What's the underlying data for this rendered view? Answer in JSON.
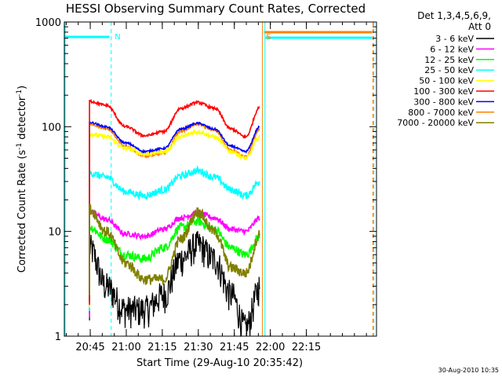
{
  "chart_data": {
    "type": "line",
    "title": "HESSI Observing Summary Count Rates, Corrected",
    "xlabel": "Start Time (29-Aug-10 20:35:42)",
    "ylabel_main": "Corrected Count Rate (s",
    "ylabel_sup1": "-1",
    "ylabel_mid": " detector",
    "ylabel_sup2": "-1",
    "ylabel_end": ")",
    "yscale": "log",
    "ylim": [
      1,
      1000
    ],
    "y_ticks": [
      {
        "value": 1,
        "label": "1"
      },
      {
        "value": 10,
        "label": "10"
      },
      {
        "value": 100,
        "label": "100"
      },
      {
        "value": 1000,
        "label": "1000"
      }
    ],
    "x_range_min": [
      -1.5,
      128.5
    ],
    "x_ticks": [
      {
        "value": 9.3,
        "label": "20:45"
      },
      {
        "value": 24.3,
        "label": "21:00"
      },
      {
        "value": 39.3,
        "label": "21:15"
      },
      {
        "value": 54.3,
        "label": "21:30"
      },
      {
        "value": 69.3,
        "label": "21:45"
      },
      {
        "value": 84.3,
        "label": "22:00"
      },
      {
        "value": 99.3,
        "label": "22:15"
      }
    ],
    "legend_header": [
      "Det 1,3,4,5,6,9,",
      "Att 0"
    ],
    "legend_placement": "right, outside plot",
    "series": [
      {
        "name": "3 - 6 keV",
        "color": "#000000",
        "values": [
          7.0,
          3.0,
          1.8,
          1.8,
          2.5,
          5.5,
          7.5,
          5.5,
          2.5,
          1.2,
          3.0
        ]
      },
      {
        "name": "6 - 12 keV",
        "color": "#ff00ff",
        "values": [
          15.5,
          13.0,
          9.5,
          9.0,
          10.5,
          13.5,
          15.0,
          13.5,
          10.5,
          10.0,
          13.5
        ]
      },
      {
        "name": "12 - 25 keV",
        "color": "#00ff00",
        "values": [
          11.0,
          8.5,
          6.0,
          5.5,
          7.0,
          11.0,
          12.5,
          10.5,
          7.0,
          6.0,
          9.0
        ]
      },
      {
        "name": "25 - 50 keV",
        "color": "#00ffff",
        "values": [
          36,
          33,
          24,
          22,
          25,
          34,
          38,
          33,
          25,
          22,
          30
        ]
      },
      {
        "name": "50 - 100 keV",
        "color": "#ffff00",
        "values": [
          85,
          80,
          62,
          55,
          58,
          80,
          90,
          80,
          58,
          50,
          80
        ]
      },
      {
        "name": "100 - 300 keV",
        "color": "#ff0000",
        "values": [
          175,
          160,
          100,
          82,
          90,
          150,
          170,
          150,
          95,
          80,
          155
        ]
      },
      {
        "name": "300 - 800 keV",
        "color": "#0000ff",
        "values": [
          110,
          100,
          70,
          58,
          62,
          95,
          108,
          95,
          65,
          58,
          100
        ]
      },
      {
        "name": "800 - 7000 keV",
        "color": "#ff8000",
        "values": [
          106,
          96,
          65,
          52,
          56,
          90,
          105,
          92,
          60,
          52,
          95
        ]
      },
      {
        "name": "7000 - 20000 keV",
        "color": "#808000",
        "values": [
          16.5,
          10.0,
          5.0,
          3.5,
          3.5,
          8.5,
          15.5,
          10.0,
          4.5,
          4.0,
          9.5
        ]
      }
    ],
    "series_x_min": [
      9,
      16,
      24,
      32,
      40,
      47,
      54,
      61,
      68,
      74,
      80
    ],
    "annotations": [
      {
        "text": "N",
        "color": "#00ffff",
        "x_min": 18.5
      },
      {
        "text": "S",
        "color": "#ff8000",
        "x_min": 81.5
      }
    ],
    "markers": {
      "night_start_min": 18.0,
      "saa_start_min": 81.0,
      "night2_start_min": 81.4,
      "end_min": 127.0
    },
    "timestamp": "30-Aug-2010 10:35"
  }
}
